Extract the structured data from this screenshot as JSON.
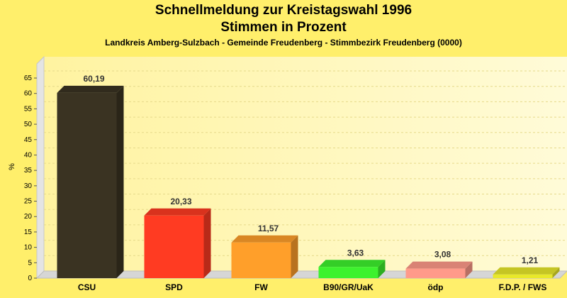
{
  "chart_data": {
    "type": "bar",
    "title": "Schnellmeldung zur Kreistagswahl 1996",
    "title2": "Stimmen in Prozent",
    "subtitle": "Landkreis Amberg-Sulzbach - Gemeinde Freudenberg - Stimmbezirk Freudenberg (0000)",
    "ylabel": "%",
    "xlabel": "",
    "ylim": [
      0,
      65
    ],
    "yticks": [
      0,
      5,
      10,
      15,
      20,
      25,
      30,
      35,
      40,
      45,
      50,
      55,
      60,
      65
    ],
    "grid": true,
    "categories": [
      "CSU",
      "SPD",
      "FW",
      "B90/GR/UaK",
      "ödp",
      "F.D.P. / FWS"
    ],
    "values": [
      60.19,
      20.33,
      11.57,
      3.63,
      3.08,
      1.21
    ],
    "value_labels": [
      "60,19",
      "20,33",
      "11,57",
      "3,63",
      "3,08",
      "1,21"
    ],
    "colors": [
      "#3a3322",
      "#ff3b22",
      "#ff9f2a",
      "#3df22e",
      "#ff9a8a",
      "#e8e82a"
    ]
  }
}
